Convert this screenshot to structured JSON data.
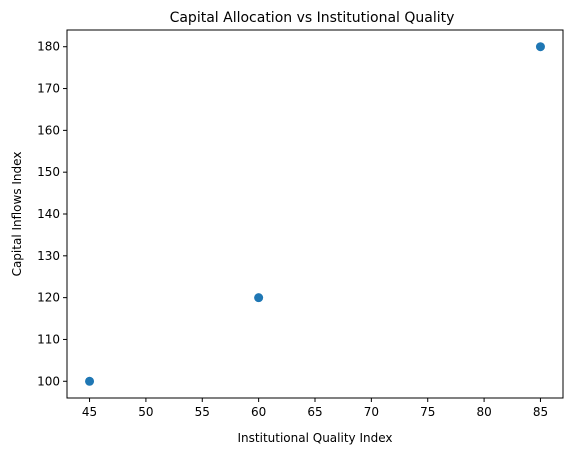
{
  "chart_data": {
    "type": "scatter",
    "title": "Capital Allocation vs Institutional Quality",
    "xlabel": "Institutional Quality Index",
    "ylabel": "Capital Inflows Index",
    "xlim": [
      43,
      87
    ],
    "ylim": [
      96,
      184
    ],
    "xticks": [
      45,
      50,
      55,
      60,
      65,
      70,
      75,
      80,
      85
    ],
    "yticks": [
      100,
      110,
      120,
      130,
      140,
      150,
      160,
      170,
      180
    ],
    "grid": false,
    "points": [
      {
        "x": 45,
        "y": 100
      },
      {
        "x": 60,
        "y": 120
      },
      {
        "x": 85,
        "y": 180
      }
    ],
    "marker_color": "#1f77b4"
  }
}
